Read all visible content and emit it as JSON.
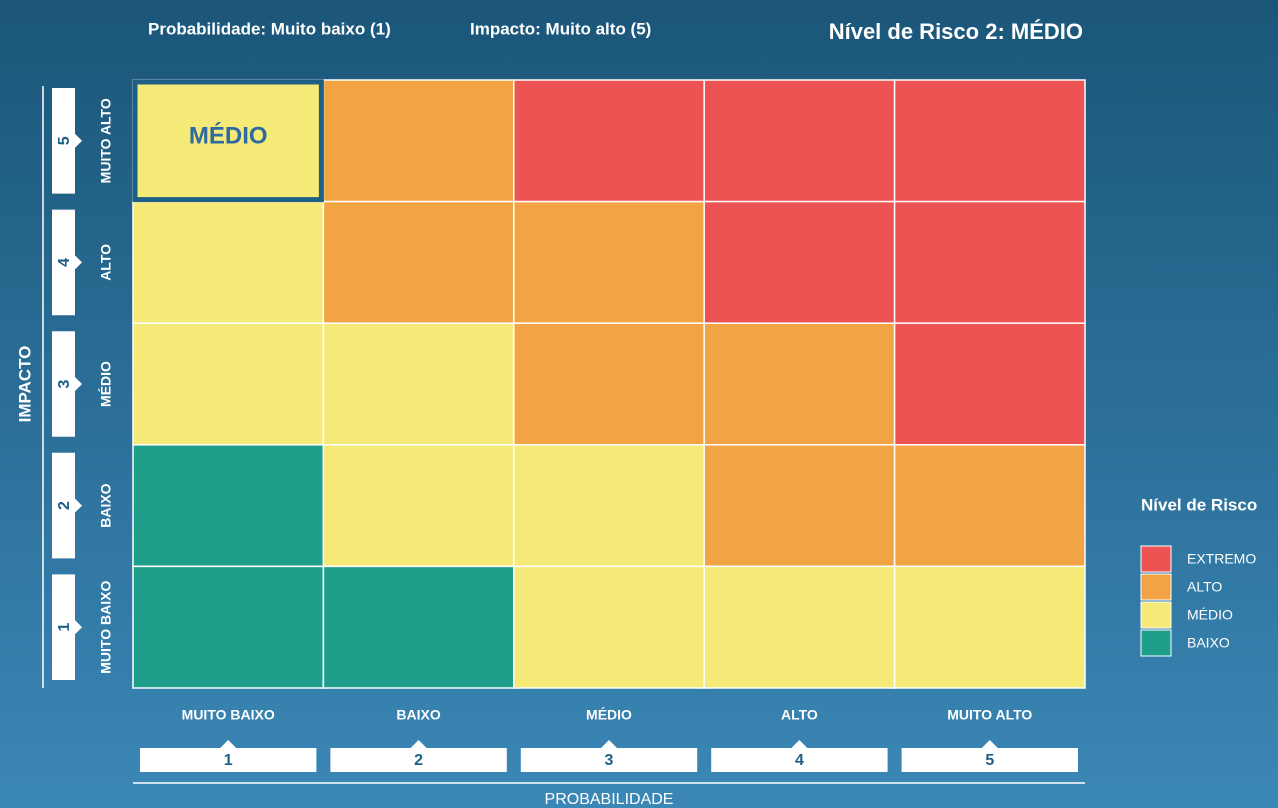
{
  "header": {
    "probability": "Probabilidade: Muito baixo (1)",
    "impact": "Impacto: Muito alto (5)",
    "risk_level": "Nível de Risco 2: MÉDIO"
  },
  "matrix": {
    "cells": [
      [
        "#f5e977",
        "#f2a444",
        "#ec5352",
        "#ec5352",
        "#ec5352"
      ],
      [
        "#f5e977",
        "#f2a444",
        "#f2a444",
        "#ec5352",
        "#ec5352"
      ],
      [
        "#f5e977",
        "#f5e977",
        "#f2a444",
        "#f2a444",
        "#ec5352"
      ],
      [
        "#1f9e8c",
        "#f5e977",
        "#f5e977",
        "#f2a444",
        "#f2a444"
      ],
      [
        "#1f9e8c",
        "#1f9e8c",
        "#f5e977",
        "#f5e977",
        "#f5e977"
      ]
    ],
    "selected_label": "MÉDIO"
  },
  "y_axis": {
    "title": "IMPACTO",
    "levels": [
      {
        "number": 5,
        "label": "MUITO ALTO"
      },
      {
        "number": 4,
        "label": "ALTO"
      },
      {
        "number": 3,
        "label": "MÉDIO"
      },
      {
        "number": 2,
        "label": "BAIXO"
      },
      {
        "number": 1,
        "label": "MUITO BAIXO"
      }
    ]
  },
  "x_axis": {
    "title": "PROBABILIDADE",
    "levels": [
      {
        "number": 1,
        "label": "MUITO BAIXO"
      },
      {
        "number": 2,
        "label": "BAIXO"
      },
      {
        "number": 3,
        "label": "MÉDIO"
      },
      {
        "number": 4,
        "label": "ALTO"
      },
      {
        "number": 5,
        "label": "MUITO ALTO"
      }
    ]
  },
  "legend": {
    "title": "Nível de Risco",
    "items": [
      {
        "label": "EXTREMO",
        "color": "#ec5352"
      },
      {
        "label": "ALTO",
        "color": "#f2a444"
      },
      {
        "label": "MÉDIO",
        "color": "#f5e977"
      },
      {
        "label": "BAIXO",
        "color": "#1f9e8c"
      }
    ]
  }
}
